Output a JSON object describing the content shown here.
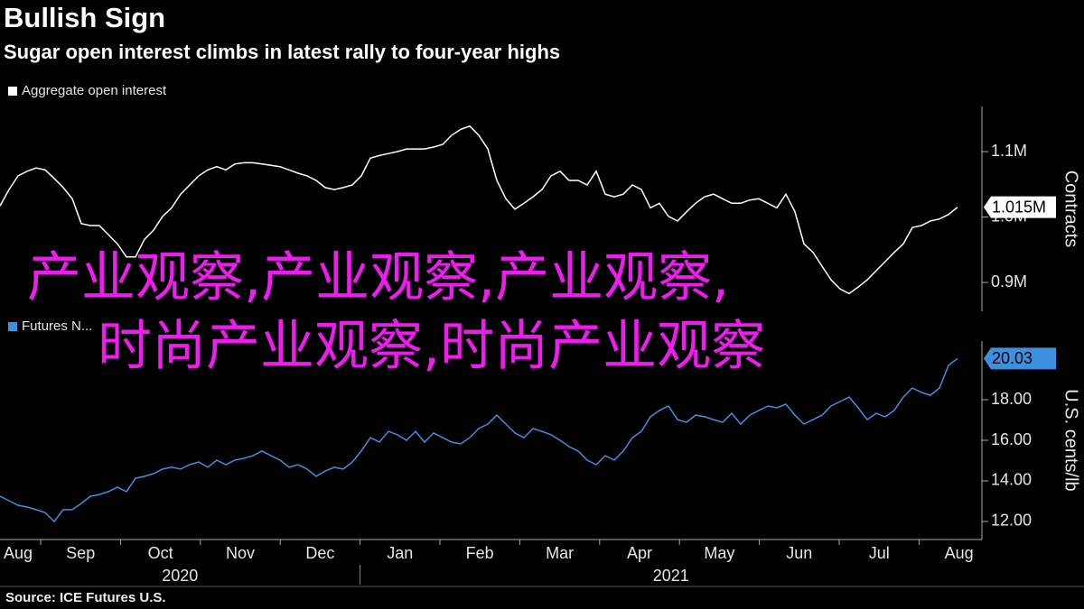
{
  "title": "Bullish Sign",
  "subtitle": "Sugar open interest climbs in latest rally to four-year highs",
  "source": "Source: ICE Futures U.S.",
  "watermark": [
    "产业观察,产业观察,产业观察,",
    "时尚产业观察,时尚产业观察"
  ],
  "chart_data": [
    {
      "type": "line",
      "y_label": "Contracts",
      "ylim": [
        856000,
        1169000
      ],
      "yticks": [
        {
          "value": 900000,
          "label": "0.9M"
        },
        {
          "value": 1000000,
          "label": "1.0M"
        },
        {
          "value": 1100000,
          "label": "1.1M"
        }
      ],
      "series": [
        {
          "name": "Aggregate open interest",
          "color": "#ffffff",
          "last_value_label": "1.015M",
          "values": [
            1017000,
            1042000,
            1063000,
            1070000,
            1075000,
            1072000,
            1059000,
            1045000,
            1028000,
            990000,
            987000,
            987000,
            973000,
            959000,
            939000,
            939000,
            966000,
            980000,
            1001000,
            1014000,
            1035000,
            1049000,
            1063000,
            1072000,
            1077000,
            1072000,
            1081000,
            1083000,
            1083000,
            1081000,
            1079000,
            1077000,
            1072000,
            1067000,
            1063000,
            1056000,
            1045000,
            1042000,
            1045000,
            1049000,
            1063000,
            1090000,
            1094000,
            1097000,
            1100000,
            1104000,
            1104000,
            1104000,
            1107000,
            1111000,
            1125000,
            1134000,
            1139000,
            1125000,
            1104000,
            1056000,
            1028000,
            1012000,
            1021000,
            1031000,
            1042000,
            1063000,
            1070000,
            1056000,
            1056000,
            1049000,
            1070000,
            1035000,
            1031000,
            1035000,
            1049000,
            1042000,
            1014000,
            1021000,
            1001000,
            994000,
            1008000,
            1021000,
            1031000,
            1035000,
            1028000,
            1021000,
            1021000,
            1026000,
            1028000,
            1021000,
            1014000,
            1035000,
            1008000,
            959000,
            946000,
            925000,
            904000,
            890000,
            883000,
            893000,
            904000,
            918000,
            932000,
            946000,
            959000,
            984000,
            987000,
            994000,
            997000,
            1004000,
            1015000
          ]
        }
      ]
    },
    {
      "type": "line",
      "y_label": "U.S. cents/lb",
      "ylim": [
        11.11,
        20.89
      ],
      "yticks": [
        {
          "value": 12,
          "label": "12.00"
        },
        {
          "value": 14,
          "label": "14.00"
        },
        {
          "value": 16,
          "label": "16.00"
        },
        {
          "value": 18,
          "label": "18.00"
        }
      ],
      "months": [
        "Aug",
        "Sep",
        "Oct",
        "Nov",
        "Dec",
        "Jan",
        "Feb",
        "Mar",
        "Apr",
        "May",
        "Jun",
        "Jul",
        "Aug"
      ],
      "years": [
        "2020",
        "2021"
      ],
      "series": [
        {
          "name": "Futures N...",
          "color": "#3d8fe0",
          "last_value_label": "20.03",
          "values": [
            13.24,
            13.02,
            12.8,
            12.71,
            12.58,
            12.44,
            12.0,
            12.58,
            12.58,
            12.89,
            13.24,
            13.33,
            13.47,
            13.69,
            13.47,
            14.13,
            14.22,
            14.36,
            14.58,
            14.67,
            14.58,
            14.8,
            14.93,
            14.67,
            15.02,
            14.8,
            15.02,
            15.11,
            15.24,
            15.47,
            15.24,
            15.02,
            14.67,
            14.8,
            14.58,
            14.22,
            14.49,
            14.67,
            14.58,
            14.93,
            15.47,
            16.13,
            15.91,
            16.44,
            16.27,
            16.0,
            16.44,
            15.91,
            16.36,
            16.13,
            15.91,
            15.82,
            16.13,
            16.58,
            16.8,
            17.24,
            16.8,
            16.36,
            16.13,
            16.58,
            16.44,
            16.27,
            16.0,
            15.69,
            15.47,
            15.02,
            14.8,
            15.24,
            15.02,
            15.47,
            16.13,
            16.44,
            17.16,
            17.47,
            17.69,
            17.02,
            16.89,
            17.24,
            17.16,
            17.02,
            16.89,
            17.33,
            16.8,
            17.24,
            17.47,
            17.69,
            17.6,
            17.78,
            17.24,
            16.8,
            17.02,
            17.24,
            17.69,
            17.91,
            18.13,
            17.6,
            17.02,
            17.33,
            17.16,
            17.47,
            18.13,
            18.58,
            18.36,
            18.22,
            18.58,
            19.69,
            20.03
          ]
        }
      ]
    }
  ]
}
